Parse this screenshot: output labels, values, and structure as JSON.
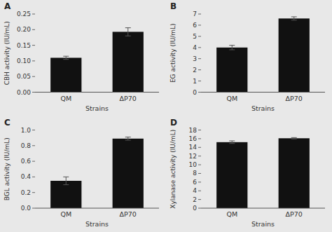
{
  "chart_data": [
    {
      "type": "bar",
      "title": "A",
      "xlabel": "Strains",
      "ylabel": "CBH activity (IU/mL)",
      "categories": [
        "QM",
        "ΔP70"
      ],
      "values": [
        0.11,
        0.193
      ],
      "errors": [
        0.005,
        0.013
      ],
      "color": "#111111",
      "ylim": [
        0.0,
        0.25
      ],
      "yticks": [
        {
          "value": 0.0,
          "label": "0.00"
        },
        0.05,
        {
          "value": 0.1,
          "label": "0.10"
        },
        0.15,
        {
          "value": 0.2,
          "label": "0.20"
        },
        0.25
      ]
    },
    {
      "type": "bar",
      "title": "B",
      "xlabel": "Strains",
      "ylabel": "EG activity (IU/mL)",
      "categories": [
        "QM",
        "ΔP70"
      ],
      "values": [
        4.0,
        6.6
      ],
      "errors": [
        0.2,
        0.15
      ],
      "color": "#111111",
      "ylim": [
        0,
        7
      ],
      "yticks": [
        0,
        1,
        2,
        3,
        4,
        5,
        6,
        7
      ]
    },
    {
      "type": "bar",
      "title": "C",
      "xlabel": "Strains",
      "ylabel": "BGL activity (IU/mL)",
      "categories": [
        "QM",
        "ΔP70"
      ],
      "values": [
        0.35,
        0.89
      ],
      "errors": [
        0.05,
        0.02
      ],
      "color": "#111111",
      "ylim": [
        0.0,
        1.0
      ],
      "yticks": [
        {
          "value": 0.0,
          "label": "0.0"
        },
        0.2,
        0.4,
        0.6,
        0.8,
        {
          "value": 1.0,
          "label": "1.0"
        }
      ]
    },
    {
      "type": "bar",
      "title": "D",
      "xlabel": "Strains",
      "ylabel": "Xylanase activity (IU/mL)",
      "categories": [
        "QM",
        "ΔP70"
      ],
      "values": [
        15.2,
        16.1
      ],
      "errors": [
        0.3,
        0.15
      ],
      "color": "#111111",
      "ylim": [
        0,
        18
      ],
      "yticks": [
        0,
        2,
        4,
        6,
        8,
        10,
        12,
        14,
        16,
        18
      ]
    }
  ]
}
